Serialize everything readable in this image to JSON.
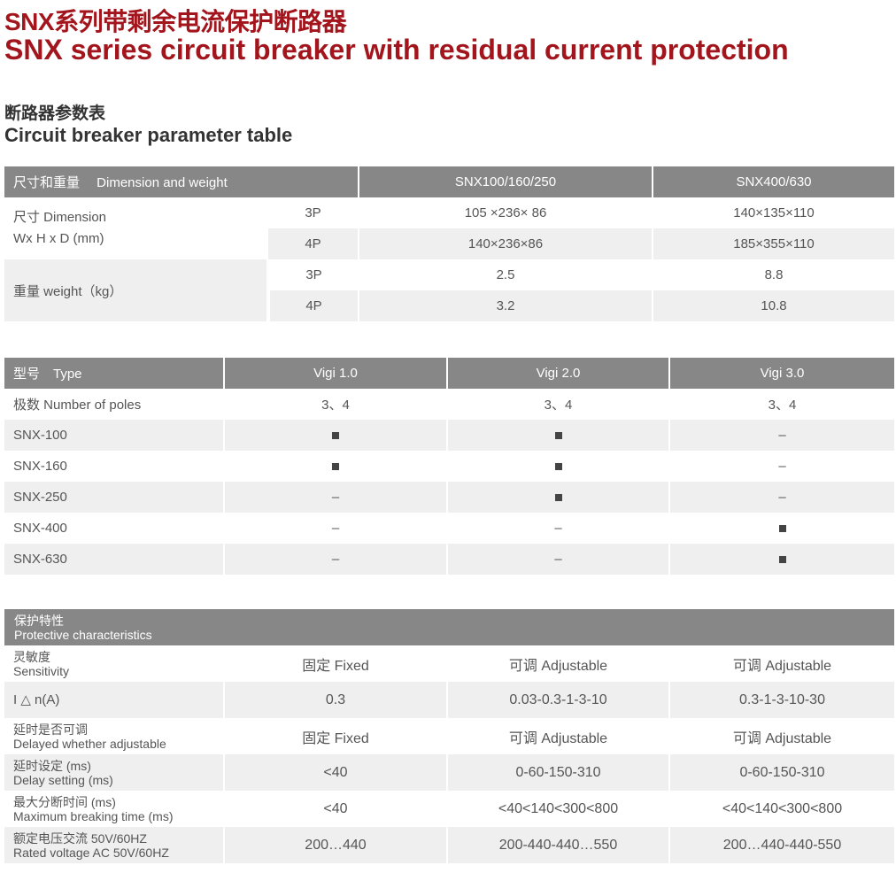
{
  "title_cn": "SNX系列带剩余电流保护断路器",
  "title_en": "SNX series circuit breaker with residual current protection",
  "section_cn": "断路器参数表",
  "section_en": "Circuit breaker parameter table",
  "table1": {
    "header": [
      "尺寸和重量　 Dimension and weight",
      "SNX100/160/250",
      "SNX400/630"
    ],
    "dimension_label": [
      "尺寸 Dimension",
      "Wx H x D (mm)"
    ],
    "weight_label": "重量 weight（kg）",
    "rows": [
      {
        "pole": "3P",
        "a": "105 ×236× 86",
        "b": "140×135×110"
      },
      {
        "pole": "4P",
        "a": "140×236×86",
        "b": "185×355×110"
      },
      {
        "pole": "3P",
        "a": "2.5",
        "b": "8.8"
      },
      {
        "pole": "4P",
        "a": "3.2",
        "b": "10.8"
      }
    ]
  },
  "table2": {
    "header": [
      "型号　Type",
      "Vigi 1.0",
      "Vigi 2.0",
      "Vigi 3.0"
    ],
    "poles": [
      "极数  Number of poles",
      "3、4",
      "3、4",
      "3、4"
    ],
    "rows": [
      {
        "model": "SNX-100",
        "v": [
          "■",
          "■",
          "–"
        ]
      },
      {
        "model": "SNX-160",
        "v": [
          "■",
          "■",
          "–"
        ]
      },
      {
        "model": "SNX-250",
        "v": [
          "–",
          "■",
          "–"
        ]
      },
      {
        "model": "SNX-400",
        "v": [
          "–",
          "–",
          "■"
        ]
      },
      {
        "model": "SNX-630",
        "v": [
          "–",
          "–",
          "■"
        ]
      }
    ]
  },
  "table3": {
    "header": [
      "保护特性",
      "Protective characteristics"
    ],
    "rows": [
      {
        "cn": "灵敏度",
        "en": "Sensitivity",
        "v": [
          "固定 Fixed",
          "可调 Adjustable",
          "可调 Adjustable"
        ]
      },
      {
        "cn": "I △ n(A)",
        "en": "",
        "v": [
          "0.3",
          "0.03-0.3-1-3-10",
          "0.3-1-3-10-30"
        ]
      },
      {
        "cn": "延时是否可调",
        "en": "Delayed whether adjustable",
        "v": [
          "固定 Fixed",
          "可调 Adjustable",
          "可调 Adjustable"
        ]
      },
      {
        "cn": "延时设定 (ms)",
        "en": "Delay setting (ms)",
        "v": [
          "<40",
          "0-60-150-310",
          "0-60-150-310"
        ]
      },
      {
        "cn": "最大分断时间 (ms)",
        "en": "Maximum breaking time (ms)",
        "v": [
          "<40",
          "<40<140<300<800",
          "<40<140<300<800"
        ]
      },
      {
        "cn": "额定电压交流 50V/60HZ",
        "en": "Rated voltage AC 50V/60HZ",
        "v": [
          "200…440",
          "200-440-440…550",
          "200…440-440-550"
        ]
      }
    ]
  },
  "colors": {
    "title": "#a3151c",
    "header_bg": "#878787",
    "stripe": "#efefef"
  }
}
